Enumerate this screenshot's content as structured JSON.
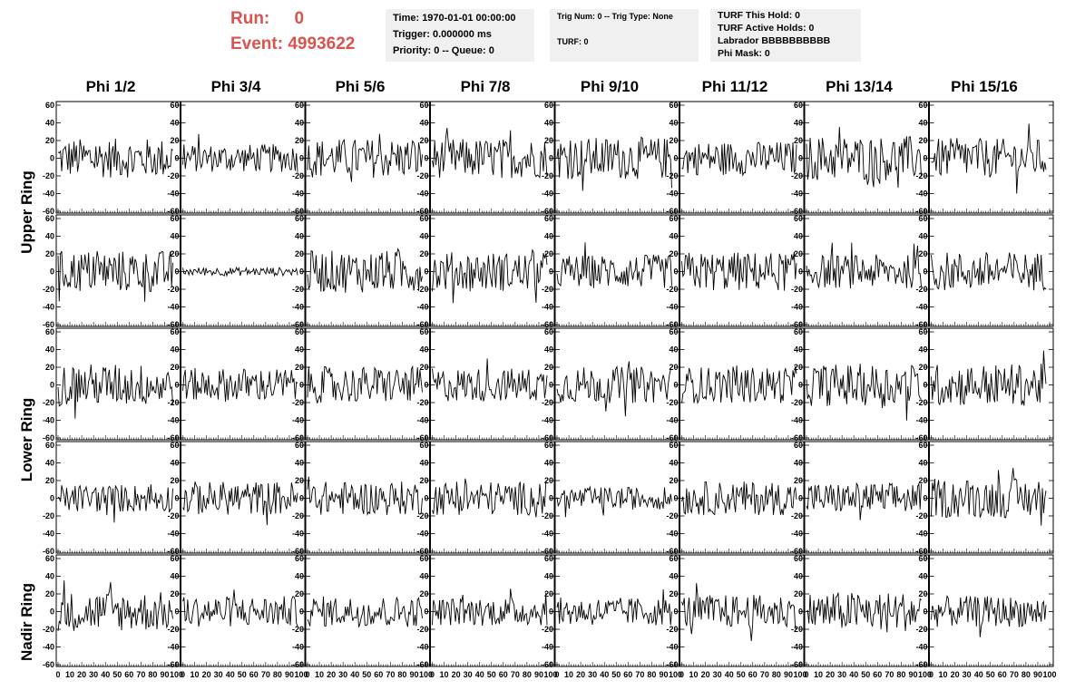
{
  "run_panel": {
    "run_label": "Run:",
    "run_value": "0",
    "event_label": "Event:",
    "event_value": "4993622"
  },
  "time_panel": {
    "time": "Time: 1970-01-01 00:00:00",
    "trigger": "Trigger: 0.000000 ms",
    "priority": "Priority: 0 -- Queue: 0"
  },
  "trig_panel": {
    "trig": "Trig Num: 0 -- Trig Type: None",
    "turf": "TURF: 0"
  },
  "turf_panel": {
    "this_hold": "TURF This Hold: 0",
    "active_holds": "TURF Active Holds: 0",
    "labrador": "Labrador BBBBBBBBBB",
    "phi_mask": "Phi Mask: 0"
  },
  "columns": [
    "Phi 1/2",
    "Phi 3/4",
    "Phi 5/6",
    "Phi 7/8",
    "Phi 9/10",
    "Phi 11/12",
    "Phi 13/14",
    "Phi 15/16"
  ],
  "ring_labels": [
    "Upper Ring",
    "Lower Ring",
    "Nadir Ring"
  ],
  "y_ticks": [
    "60",
    "40",
    "20",
    "0",
    "-20",
    "-40",
    "-60"
  ],
  "x_ticks": [
    "0",
    "10",
    "20",
    "30",
    "40",
    "50",
    "60",
    "70",
    "80",
    "90",
    "100"
  ],
  "colors": {
    "accent": "#d9534f",
    "info_bg": "#f0f0f0",
    "trace": "#000000"
  },
  "chart_data": {
    "type": "line",
    "title": "",
    "xlim": [
      0,
      100
    ],
    "ylim": [
      -60,
      60
    ],
    "rows": 5,
    "cols": 8,
    "samples_per_trace": 95,
    "amplitude_rms": [
      [
        14,
        10,
        14,
        14,
        15,
        12,
        16,
        14
      ],
      [
        15,
        3,
        15,
        14,
        12,
        14,
        12,
        14
      ],
      [
        15,
        12,
        13,
        12,
        13,
        13,
        15,
        15
      ],
      [
        10,
        12,
        12,
        12,
        8,
        12,
        11,
        14
      ],
      [
        14,
        11,
        11,
        10,
        10,
        12,
        14,
        11
      ]
    ]
  }
}
